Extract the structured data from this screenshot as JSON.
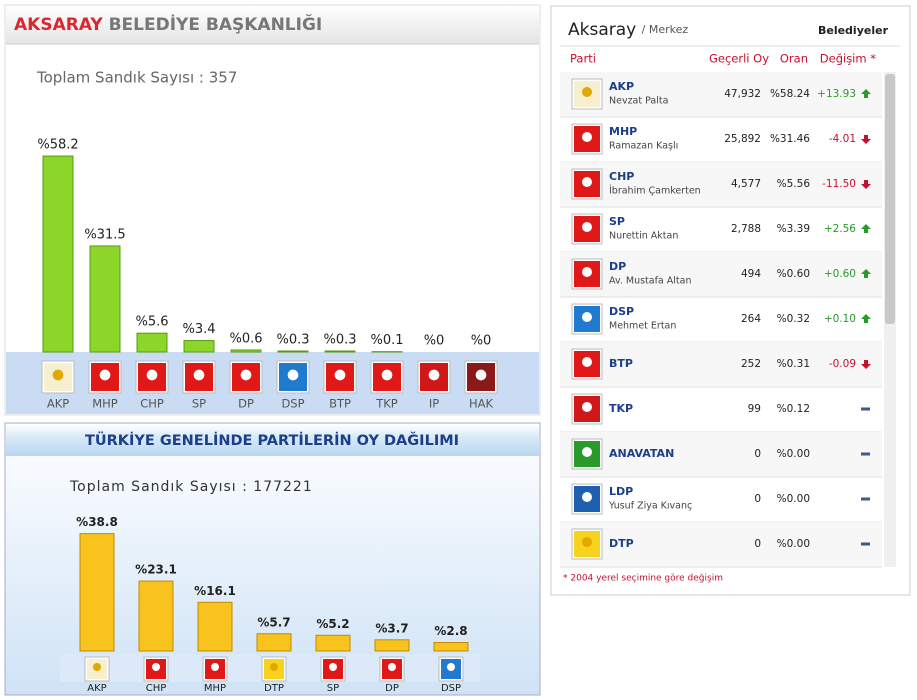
{
  "chart_data": [
    {
      "type": "bar",
      "title_highlight": "AKSARAY",
      "title": "BELEDİYE BAŞKANLIĞI",
      "subtitle": "Toplam Sandık Sayısı : 357",
      "categories": [
        "AKP",
        "MHP",
        "CHP",
        "SP",
        "DP",
        "DSP",
        "BTP",
        "TKP",
        "IP",
        "HAK"
      ],
      "values": [
        58.2,
        31.5,
        5.6,
        3.4,
        0.6,
        0.3,
        0.3,
        0.1,
        0,
        0
      ],
      "value_labels": [
        "%58.2",
        "%31.5",
        "%5.6",
        "%3.4",
        "%0.6",
        "%0.3",
        "%0.3",
        "%0.1",
        "%0",
        "%0"
      ],
      "color": "#8cd62a"
    },
    {
      "type": "bar",
      "title": "TÜRKİYE GENELİNDE PARTİLERİN OY DAĞILIMI",
      "subtitle": "Toplam Sandık Sayısı : 177221",
      "categories": [
        "AKP",
        "CHP",
        "MHP",
        "DTP",
        "SP",
        "DP",
        "DSP"
      ],
      "values": [
        38.8,
        23.1,
        16.1,
        5.7,
        5.2,
        3.7,
        2.8
      ],
      "value_labels": [
        "%38.8",
        "%23.1",
        "%16.1",
        "%5.7",
        "%5.2",
        "%3.7",
        "%2.8"
      ],
      "color": "#f7c31c"
    }
  ],
  "table": {
    "city": "Aksaray",
    "district": "/ Merkez",
    "tab": "Belediyeler",
    "columns": [
      "Parti",
      "Geçerli Oy",
      "Oran",
      "Değişim *"
    ],
    "rows": [
      {
        "party": "AKP",
        "candidate": "Nevzat Palta",
        "votes": "47,932",
        "ratio": "%58.24",
        "change": "+13.93"
      },
      {
        "party": "MHP",
        "candidate": "Ramazan Kaşlı",
        "votes": "25,892",
        "ratio": "%31.46",
        "change": "-4.01"
      },
      {
        "party": "CHP",
        "candidate": "İbrahim Çamkerten",
        "votes": "4,577",
        "ratio": "%5.56",
        "change": "-11.50"
      },
      {
        "party": "SP",
        "candidate": "Nurettin Aktan",
        "votes": "2,788",
        "ratio": "%3.39",
        "change": "+2.56"
      },
      {
        "party": "DP",
        "candidate": "Av. Mustafa Altan",
        "votes": "494",
        "ratio": "%0.60",
        "change": "+0.60"
      },
      {
        "party": "DSP",
        "candidate": "Mehmet Ertan",
        "votes": "264",
        "ratio": "%0.32",
        "change": "+0.10"
      },
      {
        "party": "BTP",
        "candidate": null,
        "votes": "252",
        "ratio": "%0.31",
        "change": "-0.09"
      },
      {
        "party": "TKP",
        "candidate": null,
        "votes": "99",
        "ratio": "%0.12",
        "change": null
      },
      {
        "party": "ANAVATAN",
        "candidate": null,
        "votes": "0",
        "ratio": "%0.00",
        "change": null
      },
      {
        "party": "LDP",
        "candidate": "Yusuf Ziya Kıvanç",
        "votes": "0",
        "ratio": "%0.00",
        "change": null
      },
      {
        "party": "DTP",
        "candidate": null,
        "votes": "0",
        "ratio": "%0.00",
        "change": null
      }
    ],
    "footnote": "* 2004 yerel seçimine göre değişim"
  }
}
